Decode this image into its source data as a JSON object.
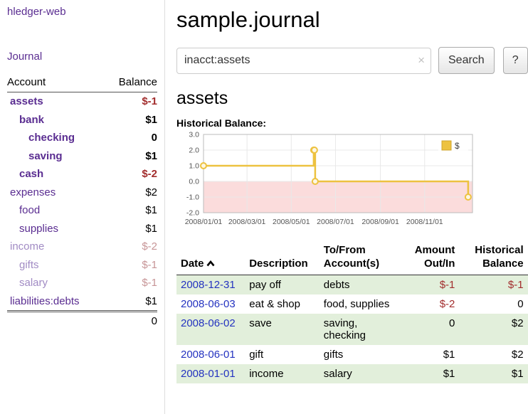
{
  "app": {
    "brand": "hledger-web",
    "nav_journal": "Journal"
  },
  "sidebar": {
    "header": {
      "account": "Account",
      "balance": "Balance"
    },
    "accounts": [
      {
        "name": "assets",
        "depth": 0,
        "balance": "$-1",
        "bold": true,
        "dim": false,
        "negative": true
      },
      {
        "name": "bank",
        "depth": 1,
        "balance": "$1",
        "bold": true,
        "dim": false,
        "negative": false
      },
      {
        "name": "checking",
        "depth": 2,
        "balance": "0",
        "bold": true,
        "dim": false,
        "negative": false
      },
      {
        "name": "saving",
        "depth": 2,
        "balance": "$1",
        "bold": true,
        "dim": false,
        "negative": false
      },
      {
        "name": "cash",
        "depth": 1,
        "balance": "$-2",
        "bold": true,
        "dim": false,
        "negative": true
      },
      {
        "name": "expenses",
        "depth": 0,
        "balance": "$2",
        "bold": false,
        "dim": false,
        "negative": false
      },
      {
        "name": "food",
        "depth": 1,
        "balance": "$1",
        "bold": false,
        "dim": false,
        "negative": false
      },
      {
        "name": "supplies",
        "depth": 1,
        "balance": "$1",
        "bold": false,
        "dim": false,
        "negative": false
      },
      {
        "name": "income",
        "depth": 0,
        "balance": "$-2",
        "bold": false,
        "dim": true,
        "negative": true
      },
      {
        "name": "gifts",
        "depth": 1,
        "balance": "$-1",
        "bold": false,
        "dim": true,
        "negative": true
      },
      {
        "name": "salary",
        "depth": 1,
        "balance": "$-1",
        "bold": false,
        "dim": true,
        "negative": true
      },
      {
        "name": "liabilities:debts",
        "depth": 0,
        "balance": "$1",
        "bold": false,
        "dim": false,
        "negative": false
      }
    ],
    "total": "0"
  },
  "main": {
    "title": "sample.journal",
    "search": {
      "value": "inacct:assets",
      "clear_icon": "×",
      "search_button": "Search",
      "help_button": "?"
    },
    "section": {
      "heading": "assets",
      "chart_label": "Historical Balance:"
    }
  },
  "chart_data": {
    "type": "line",
    "step": true,
    "title": "Historical Balance",
    "series": [
      {
        "name": "$",
        "color": "#edc240",
        "points": [
          {
            "date": "2008-01-01",
            "value": 1
          },
          {
            "date": "2008-06-01",
            "value": 2
          },
          {
            "date": "2008-06-02",
            "value": 2
          },
          {
            "date": "2008-06-03",
            "value": 0
          },
          {
            "date": "2008-12-31",
            "value": -1
          }
        ]
      }
    ],
    "ylim": [
      -2,
      3
    ],
    "xlim": [
      "2008-01-01",
      "2009-01-06"
    ],
    "yticks": [
      "3.0",
      "2.0",
      "1.0",
      "0.0",
      "-1.0",
      "-2.0"
    ],
    "xticks": [
      {
        "date": "2008-01-01",
        "label": "2008/01/01"
      },
      {
        "date": "2008-03-01",
        "label": "2008/03/01"
      },
      {
        "date": "2008-05-01",
        "label": "2008/05/01"
      },
      {
        "date": "2008-07-01",
        "label": "2008/07/01"
      },
      {
        "date": "2008-09-01",
        "label": "2008/09/01"
      },
      {
        "date": "2008-11-01",
        "label": "2008/11/01"
      }
    ],
    "legend": {
      "label": "$",
      "position": "top-right"
    },
    "negative_fill": "#fbdcdc",
    "grid": true
  },
  "transactions": {
    "headers": {
      "date": "Date",
      "sort": "ascending",
      "description": "Description",
      "tofrom_line1": "To/From",
      "tofrom_line2": "Account(s)",
      "amount_line1": "Amount",
      "amount_line2": "Out/In",
      "historical_line1": "Historical",
      "historical_line2": "Balance"
    },
    "rows": [
      {
        "date": "2008-12-31",
        "description": "pay off",
        "tofrom": "debts",
        "amount": "$-1",
        "amount_neg": true,
        "balance": "$-1",
        "balance_neg": true
      },
      {
        "date": "2008-06-03",
        "description": "eat & shop",
        "tofrom": "food, supplies",
        "amount": "$-2",
        "amount_neg": true,
        "balance": "0",
        "balance_neg": false
      },
      {
        "date": "2008-06-02",
        "description": "save",
        "tofrom": "saving, checking",
        "amount": "0",
        "amount_neg": false,
        "balance": "$2",
        "balance_neg": false
      },
      {
        "date": "2008-06-01",
        "description": "gift",
        "tofrom": "gifts",
        "amount": "$1",
        "amount_neg": false,
        "balance": "$2",
        "balance_neg": false
      },
      {
        "date": "2008-01-01",
        "description": "income",
        "tofrom": "salary",
        "amount": "$1",
        "amount_neg": false,
        "balance": "$1",
        "balance_neg": false
      }
    ]
  }
}
